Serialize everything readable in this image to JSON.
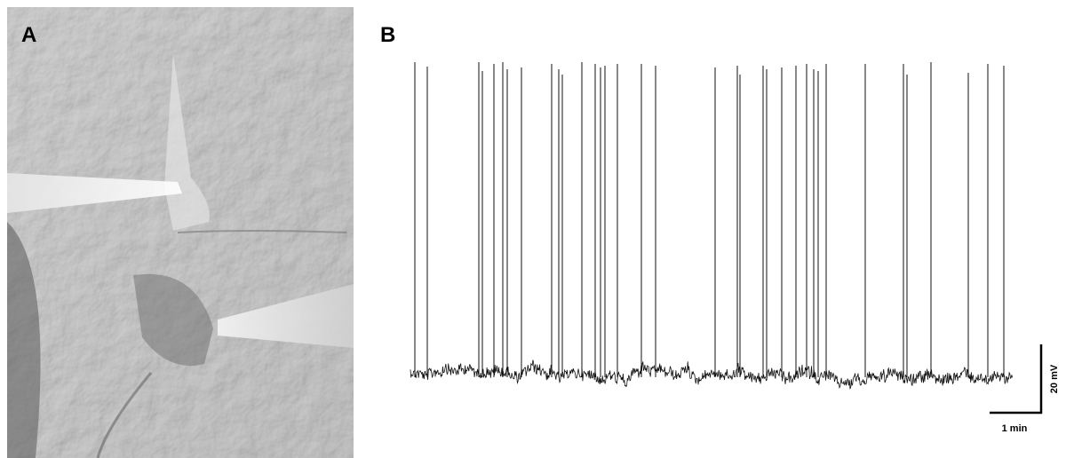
{
  "panels": [
    {
      "label": "A"
    },
    {
      "label": "B"
    }
  ],
  "scale_bar": {
    "vertical": "20 mV",
    "horizontal": "1 min"
  }
}
